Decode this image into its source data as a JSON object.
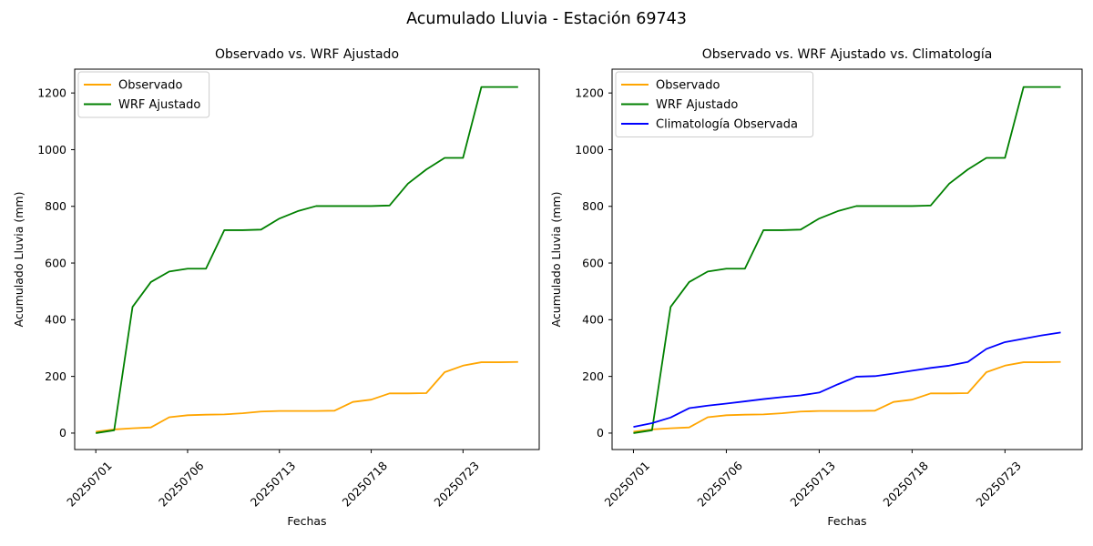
{
  "figure_title": "Acumulado Lluvia - Estación 69743",
  "text_color": "#000000",
  "background_color": "#ffffff",
  "chart_data": [
    {
      "type": "line",
      "title": "Observado vs. WRF Ajustado",
      "xlabel": "Fechas",
      "ylabel": "Acumulado Lluvia (mm)",
      "x_tick_positions": [
        0,
        5,
        10,
        15,
        20
      ],
      "x_tick_labels": [
        "20250701",
        "20250706",
        "20250713",
        "20250718",
        "20250723"
      ],
      "x_tick_rotation": 45,
      "y_ticks": [
        0,
        200,
        400,
        600,
        800,
        1000,
        1200
      ],
      "xlim": [
        -1.15,
        24.15
      ],
      "ylim": [
        -58,
        1284
      ],
      "grid": false,
      "legend_position": "upper-left",
      "series": [
        {
          "name": "Observado",
          "color": "#FFA500",
          "values": [
            5,
            13,
            17,
            20,
            56,
            63,
            65,
            66,
            70,
            76,
            78,
            78,
            78,
            79,
            110,
            118,
            140,
            140,
            141,
            215,
            238,
            250,
            250,
            251
          ]
        },
        {
          "name": "WRF Ajustado",
          "color": "#008000",
          "values": [
            0,
            10,
            445,
            533,
            570,
            580,
            580,
            716,
            716,
            718,
            757,
            783,
            801,
            801,
            801,
            801,
            803,
            880,
            930,
            971,
            971,
            1221,
            1221,
            1221
          ]
        }
      ]
    },
    {
      "type": "line",
      "title": "Observado vs. WRF Ajustado vs. Climatología",
      "xlabel": "Fechas",
      "ylabel": "Acumulado Lluvia (mm)",
      "x_tick_positions": [
        0,
        5,
        10,
        15,
        20
      ],
      "x_tick_labels": [
        "20250701",
        "20250706",
        "20250713",
        "20250718",
        "20250723"
      ],
      "x_tick_rotation": 45,
      "y_ticks": [
        0,
        200,
        400,
        600,
        800,
        1000,
        1200
      ],
      "xlim": [
        -1.15,
        24.15
      ],
      "ylim": [
        -58,
        1284
      ],
      "grid": false,
      "legend_position": "upper-left",
      "series": [
        {
          "name": "Observado",
          "color": "#FFA500",
          "values": [
            5,
            13,
            17,
            20,
            56,
            63,
            65,
            66,
            70,
            76,
            78,
            78,
            78,
            79,
            110,
            118,
            140,
            140,
            141,
            215,
            238,
            250,
            250,
            251
          ]
        },
        {
          "name": "WRF Ajustado",
          "color": "#008000",
          "values": [
            0,
            10,
            445,
            533,
            570,
            580,
            580,
            716,
            716,
            718,
            757,
            783,
            801,
            801,
            801,
            801,
            803,
            880,
            930,
            971,
            971,
            1221,
            1221,
            1221
          ]
        },
        {
          "name": "Climatología Observada",
          "color": "#0000FF",
          "values": [
            22,
            35,
            55,
            88,
            97,
            104,
            112,
            120,
            127,
            133,
            143,
            172,
            199,
            201,
            210,
            220,
            230,
            238,
            251,
            297,
            321,
            333,
            345,
            355
          ]
        }
      ]
    }
  ]
}
